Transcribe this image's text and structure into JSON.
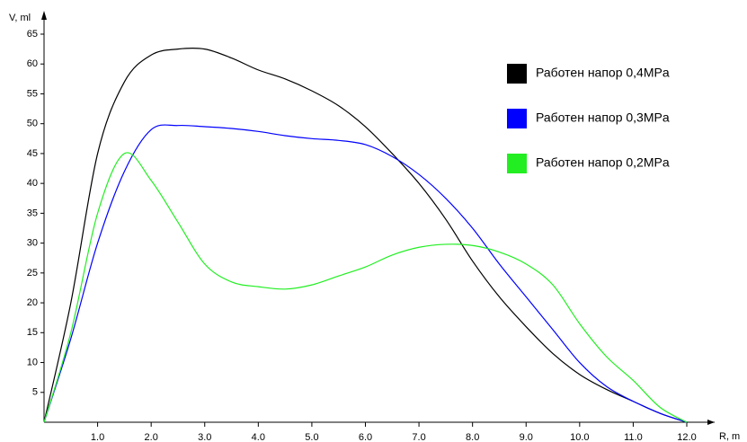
{
  "chart_data": {
    "type": "line",
    "x_label": "R, m",
    "y_label": "V, ml",
    "x": [
      0,
      0.5,
      1,
      1.5,
      2,
      2.5,
      3,
      3.5,
      4,
      4.5,
      5,
      5.5,
      6,
      6.5,
      7,
      7.5,
      8,
      8.5,
      9,
      9.5,
      10,
      10.5,
      11,
      11.5,
      12
    ],
    "series": [
      {
        "name": "Работен напор 0,4MPa",
        "color": "#000000",
        "values": [
          0,
          20,
          45,
          57,
          61.5,
          62.5,
          62.5,
          61,
          59,
          57.5,
          55.5,
          53,
          49.5,
          45,
          40,
          34,
          27,
          21,
          16,
          11.5,
          8,
          5.5,
          3.5,
          1.5,
          0
        ]
      },
      {
        "name": "Работен напор 0,3MPa",
        "color": "#0000ff",
        "values": [
          0,
          14,
          30,
          42,
          49,
          49.7,
          49.5,
          49.2,
          48.7,
          48,
          47.5,
          47.2,
          46.5,
          44.5,
          41.5,
          37.5,
          32.5,
          26.5,
          21,
          15.5,
          10,
          6,
          3.5,
          1.5,
          0
        ]
      },
      {
        "name": "Работен напор 0,2MPa",
        "color": "#22ee22",
        "values": [
          0,
          15,
          35,
          45,
          40.5,
          33.5,
          26.5,
          23.5,
          22.7,
          22.3,
          23,
          24.5,
          26,
          28,
          29.3,
          29.8,
          29.6,
          28.5,
          26.5,
          23,
          16.5,
          11,
          7,
          2.5,
          0
        ]
      }
    ],
    "xlim": [
      0,
      12
    ],
    "ylim": [
      0,
      65
    ],
    "xticks": [
      {
        "value": 1,
        "label": "1.0"
      },
      {
        "value": 2,
        "label": "2.0"
      },
      {
        "value": 3,
        "label": "3.0"
      },
      {
        "value": 4,
        "label": "4.0"
      },
      {
        "value": 5,
        "label": "5.0"
      },
      {
        "value": 6,
        "label": "6.0"
      },
      {
        "value": 7,
        "label": "7.0"
      },
      {
        "value": 8,
        "label": "8.0"
      },
      {
        "value": 9,
        "label": "9.0"
      },
      {
        "value": 10,
        "label": "10.0"
      },
      {
        "value": 11,
        "label": "11.0"
      },
      {
        "value": 12,
        "label": "12.0"
      }
    ],
    "yticks": [
      5,
      10,
      15,
      20,
      25,
      30,
      35,
      40,
      45,
      50,
      55,
      60,
      65
    ],
    "grid": false,
    "legend": "right"
  }
}
